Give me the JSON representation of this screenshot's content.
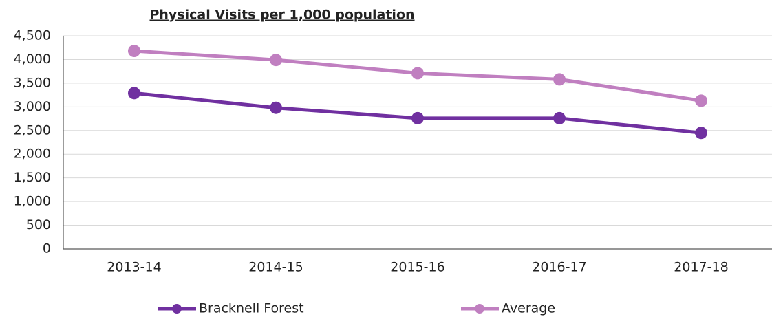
{
  "chart_data": {
    "type": "line",
    "title": "Physical Visits per 1,000 population",
    "categories": [
      "2013-14",
      "2014-15",
      "2015-16",
      "2016-17",
      "2017-18"
    ],
    "series": [
      {
        "name": "Bracknell Forest",
        "color": "#7030a0",
        "values": [
          3290,
          2980,
          2760,
          2760,
          2450
        ]
      },
      {
        "name": "Average",
        "color": "#c07fc0",
        "values": [
          4180,
          3990,
          3710,
          3580,
          3130
        ]
      }
    ],
    "ylim": [
      0,
      4500
    ],
    "yticks": [
      0,
      500,
      {
        "value": 1000,
        "label": "1,000"
      },
      {
        "value": 1500,
        "label": "1,500"
      },
      {
        "value": 2000,
        "label": "2,000"
      },
      {
        "value": 2500,
        "label": "2,500"
      },
      {
        "value": 3000,
        "label": "3,000"
      },
      {
        "value": 3500,
        "label": "3,500"
      },
      {
        "value": 4000,
        "label": "4,000"
      },
      {
        "value": 4500,
        "label": "4,500"
      }
    ],
    "grid": true,
    "legend": "bottom"
  }
}
